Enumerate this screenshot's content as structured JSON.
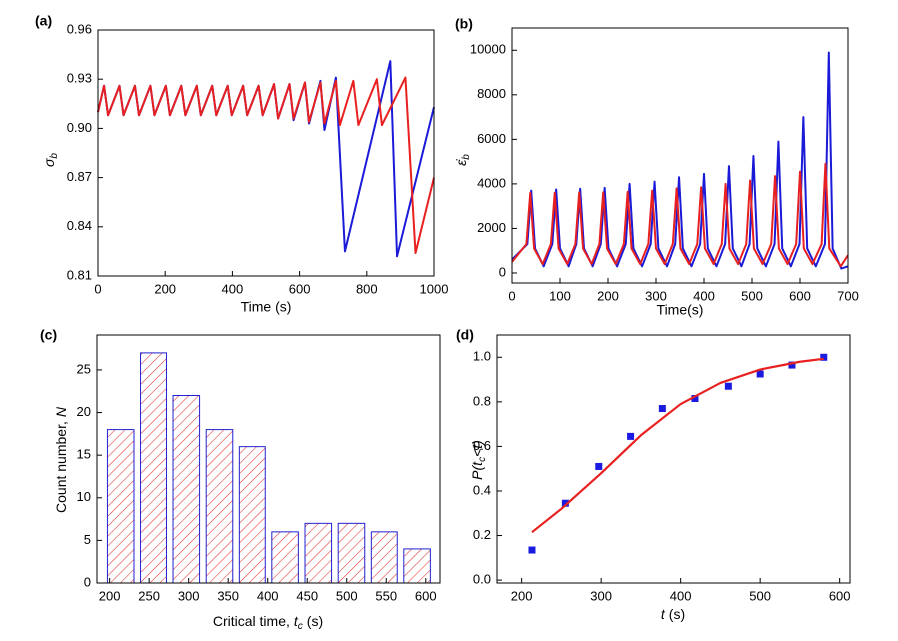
{
  "chart_data": [
    {
      "type": "line",
      "panel_label": "(a)",
      "x_label": [
        "Time (s)"
      ],
      "y_label": [
        "σ",
        "b"
      ],
      "xlim": [
        0,
        1000
      ],
      "xticks": [
        0,
        200,
        400,
        600,
        800,
        1000
      ],
      "ylim": [
        0.81,
        0.96
      ],
      "yticks": [
        0.81,
        0.84,
        0.87,
        {
          "value": 0.9,
          "label": "0.90"
        },
        0.93,
        0.96
      ],
      "series": [
        {
          "color": "#1a1ad8",
          "x": [
            0,
            18,
            30,
            64,
            76,
            110,
            122,
            156,
            168,
            202,
            214,
            248,
            260,
            294,
            306,
            340,
            352,
            386,
            398,
            432,
            444,
            478,
            490,
            524,
            536,
            570,
            582,
            616,
            628,
            662,
            674,
            708,
            735,
            870,
            890,
            1000
          ],
          "values": [
            0.91,
            0.926,
            0.908,
            0.926,
            0.908,
            0.926,
            0.908,
            0.926,
            0.908,
            0.926,
            0.908,
            0.926,
            0.908,
            0.926,
            0.908,
            0.926,
            0.908,
            0.926,
            0.908,
            0.926,
            0.908,
            0.926,
            0.908,
            0.927,
            0.906,
            0.927,
            0.905,
            0.928,
            0.903,
            0.929,
            0.899,
            0.931,
            0.825,
            0.941,
            0.822,
            0.913
          ]
        },
        {
          "color": "#e82020",
          "x": [
            0,
            18,
            30,
            64,
            76,
            110,
            122,
            156,
            168,
            202,
            214,
            248,
            260,
            294,
            306,
            340,
            352,
            386,
            398,
            432,
            444,
            478,
            490,
            524,
            536,
            570,
            582,
            616,
            628,
            662,
            674,
            708,
            720,
            760,
            775,
            830,
            845,
            915,
            945,
            1000
          ],
          "values": [
            0.91,
            0.926,
            0.908,
            0.926,
            0.908,
            0.926,
            0.908,
            0.926,
            0.908,
            0.926,
            0.908,
            0.926,
            0.908,
            0.926,
            0.908,
            0.926,
            0.908,
            0.926,
            0.908,
            0.926,
            0.908,
            0.926,
            0.908,
            0.927,
            0.906,
            0.927,
            0.906,
            0.928,
            0.904,
            0.928,
            0.903,
            0.929,
            0.902,
            0.929,
            0.902,
            0.93,
            0.902,
            0.931,
            0.824,
            0.87
          ]
        }
      ]
    },
    {
      "type": "line",
      "panel_label": "(b)",
      "x_label": [
        "Time(s)"
      ],
      "y_label": [
        "ε̇",
        "b"
      ],
      "xlim": [
        0,
        700
      ],
      "xticks": [
        0,
        100,
        200,
        300,
        400,
        500,
        600,
        700
      ],
      "ylim": [
        -450,
        11000
      ],
      "yticks": [
        0,
        2000,
        4000,
        6000,
        8000,
        10000
      ],
      "series": [
        {
          "color": "#1a1ad8",
          "x": [
            0,
            32,
            40,
            48,
            66,
            84,
            92,
            100,
            118,
            134,
            142,
            150,
            168,
            185,
            193,
            201,
            219,
            237,
            245,
            253,
            271,
            289,
            297,
            305,
            323,
            340,
            348,
            356,
            374,
            392,
            400,
            408,
            426,
            444,
            452,
            460,
            478,
            495,
            503,
            511,
            529,
            547,
            555,
            563,
            581,
            599,
            607,
            615,
            633,
            652,
            660,
            668,
            686,
            700
          ],
          "values": [
            600,
            1300,
            3700,
            1100,
            300,
            1300,
            3750,
            1100,
            300,
            1300,
            3780,
            1100,
            300,
            1300,
            3820,
            1100,
            300,
            1300,
            4000,
            1100,
            300,
            1300,
            4100,
            1100,
            300,
            1300,
            4300,
            1100,
            300,
            1300,
            4450,
            1100,
            300,
            1300,
            4800,
            1100,
            300,
            1300,
            5250,
            1100,
            300,
            1300,
            5900,
            1100,
            300,
            1300,
            7000,
            1100,
            300,
            1300,
            9900,
            1100,
            200,
            300
          ]
        },
        {
          "color": "#e82020",
          "x": [
            0,
            30,
            38,
            46,
            64,
            81,
            89,
            97,
            115,
            132,
            140,
            148,
            166,
            182,
            190,
            198,
            216,
            233,
            241,
            249,
            267,
            284,
            292,
            300,
            318,
            335,
            343,
            351,
            369,
            386,
            394,
            402,
            420,
            437,
            445,
            453,
            471,
            488,
            496,
            504,
            522,
            540,
            548,
            556,
            574,
            592,
            600,
            608,
            626,
            645,
            653,
            661,
            685,
            700
          ],
          "values": [
            500,
            1300,
            3600,
            1100,
            400,
            1300,
            3600,
            1100,
            400,
            1300,
            3620,
            1100,
            400,
            1300,
            3620,
            1100,
            400,
            1300,
            3650,
            1100,
            400,
            1300,
            3700,
            1100,
            400,
            1300,
            3800,
            1100,
            400,
            1300,
            3850,
            1100,
            400,
            1300,
            4000,
            1100,
            400,
            1300,
            4150,
            1100,
            400,
            1300,
            4350,
            1100,
            400,
            1300,
            4550,
            1100,
            400,
            1300,
            4900,
            1100,
            300,
            800
          ]
        }
      ]
    },
    {
      "type": "histogram",
      "panel_label": "(c)",
      "x_label": [
        "Critical time,",
        "t",
        "c",
        "(s)"
      ],
      "y_label": [
        "Count number,",
        "N"
      ],
      "xlim": [
        184,
        618
      ],
      "xticks": [
        200,
        250,
        300,
        350,
        400,
        450,
        500,
        550,
        600
      ],
      "ylim": [
        0,
        29.1
      ],
      "yticks": [
        0,
        5,
        10,
        15,
        20,
        25
      ],
      "bins": [
        193,
        235,
        276,
        318,
        360,
        401,
        443,
        485,
        527,
        568,
        610
      ],
      "values": [
        18,
        27,
        22,
        18,
        16,
        6,
        7,
        7,
        6,
        4
      ],
      "color": "#e03030",
      "edgecolor": "#2020d0"
    },
    {
      "type": "scatter",
      "panel_label": "(d)",
      "x_label": [
        "t",
        "(s)"
      ],
      "y_label": [
        "P(t",
        "c",
        "<t)"
      ],
      "xlim": [
        169,
        613
      ],
      "xticks": [
        200,
        300,
        400,
        500,
        600
      ],
      "ylim": [
        -0.013,
        1.1
      ],
      "yticks": [
        {
          "value": 0,
          "label": "0.0"
        },
        0.2,
        0.4,
        0.6,
        0.8,
        {
          "value": 1,
          "label": "1.0"
        }
      ],
      "series": [
        {
          "mode": "markers",
          "color": "#1a1ae0",
          "x": [
            213,
            255,
            297,
            337,
            377,
            418,
            460,
            500,
            540,
            580
          ],
          "values": [
            0.135,
            0.345,
            0.51,
            0.645,
            0.77,
            0.815,
            0.87,
            0.925,
            0.965,
            1.0
          ]
        },
        {
          "mode": "line",
          "color": "#e82020",
          "x": [
            213,
            250,
            300,
            350,
            400,
            450,
            500,
            550,
            580
          ],
          "values": [
            0.215,
            0.32,
            0.48,
            0.65,
            0.79,
            0.885,
            0.945,
            0.98,
            0.993
          ]
        }
      ]
    }
  ]
}
